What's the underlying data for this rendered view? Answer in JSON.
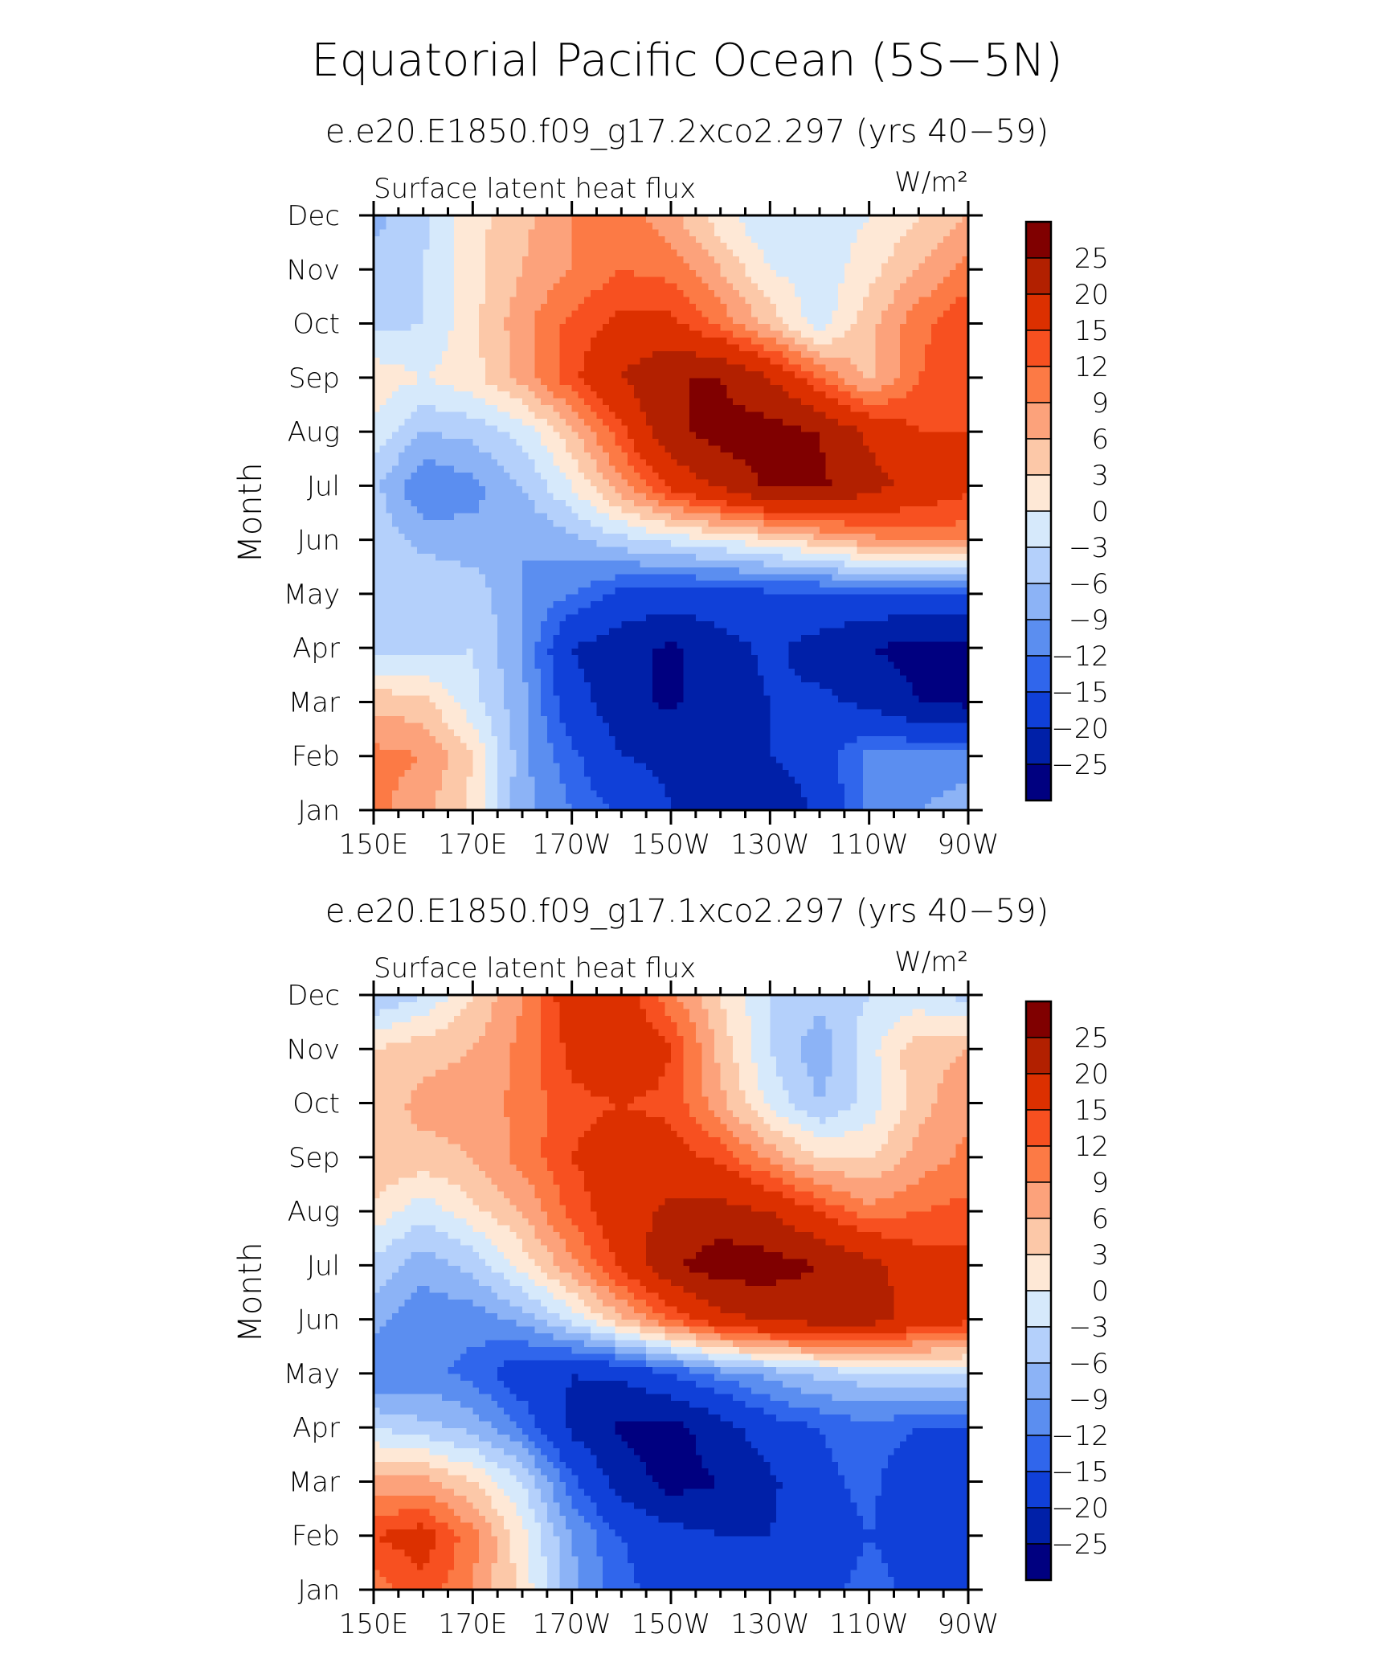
{
  "figure_title": "Equatorial Pacific Ocean (5S−5N)",
  "colorbar": {
    "levels": [
      "25",
      "20",
      "15",
      "12",
      "9",
      "6",
      "3",
      "0",
      "−3",
      "−6",
      "−9",
      "−12",
      "−15",
      "−20",
      "−25"
    ],
    "colors": [
      "#800000",
      "#b22000",
      "#dc3000",
      "#f75020",
      "#fc7a45",
      "#fca27b",
      "#fcc8a8",
      "#fee8d6",
      "#d6e9fb",
      "#b4d0fb",
      "#8cb3f6",
      "#5b8ef0",
      "#3066ec",
      "#1040d8",
      "#0020a8",
      "#000080"
    ]
  },
  "chart_data": [
    {
      "type": "heatmap",
      "panel_title": "e.e20.E1850.f09_g17.2xco2.297 (yrs 40−59)",
      "variable_label": "Surface latent heat flux",
      "units": "W/m²",
      "ylabel": "Month",
      "x_tick_labels": [
        "150E",
        "170E",
        "170W",
        "150W",
        "130W",
        "110W",
        "90W"
      ],
      "y_tick_labels": [
        "Jan",
        "Feb",
        "Mar",
        "Apr",
        "May",
        "Jun",
        "Jul",
        "Aug",
        "Sep",
        "Oct",
        "Nov",
        "Dec"
      ],
      "x": [
        150,
        160,
        170,
        180,
        190,
        200,
        210,
        220,
        230,
        240,
        250,
        260,
        270
      ],
      "y": [
        "Jan",
        "Feb",
        "Mar",
        "Apr",
        "May",
        "Jun",
        "Jul",
        "Aug",
        "Sep",
        "Oct",
        "Nov",
        "Dec"
      ],
      "z": [
        [
          10,
          7,
          2,
          -8,
          -12,
          -16,
          -20,
          -22,
          -25,
          -19,
          -11,
          -9,
          -7
        ],
        [
          10,
          9,
          3,
          -8,
          -14,
          -20,
          -21,
          -21,
          -20,
          -17,
          -11,
          -11,
          -11
        ],
        [
          5,
          4,
          -2,
          -8,
          -18,
          -23,
          -26,
          -22,
          -20,
          -19,
          -21,
          -25,
          -26
        ],
        [
          -4,
          -4,
          -3,
          -9,
          -20,
          -23,
          -26,
          -22,
          -19,
          -22,
          -25,
          -27,
          -27
        ],
        [
          -5,
          -3,
          -4,
          -9,
          -12,
          -16,
          -17,
          -17,
          -16,
          -16,
          -15,
          -16,
          -15
        ],
        [
          -4,
          -7,
          -8,
          -9,
          -7,
          -4,
          -2,
          0,
          2,
          5,
          8,
          10,
          10
        ],
        [
          -5,
          -12,
          -10,
          -6,
          0,
          8,
          16,
          21,
          26,
          26,
          22,
          18,
          16
        ],
        [
          -1,
          -6,
          -5,
          -2,
          5,
          14,
          24,
          27,
          27,
          25,
          19,
          15,
          15
        ],
        [
          2,
          0,
          2,
          7,
          14,
          20,
          25,
          25,
          20,
          12,
          5,
          12,
          14
        ],
        [
          -4,
          -3,
          2,
          8,
          13,
          16,
          16,
          11,
          5,
          -2,
          5,
          11,
          15
        ],
        [
          -5,
          -3,
          2,
          6,
          9,
          12,
          11,
          6,
          0,
          -2,
          2,
          6,
          10
        ],
        [
          -7,
          -4,
          2,
          5,
          9,
          11,
          7,
          1,
          -3,
          -3,
          0,
          3,
          6
        ]
      ]
    },
    {
      "type": "heatmap",
      "panel_title": "e.e20.E1850.f09_g17.1xco2.297 (yrs 40−59)",
      "variable_label": "Surface latent heat flux",
      "units": "W/m²",
      "ylabel": "Month",
      "x_tick_labels": [
        "150E",
        "170E",
        "170W",
        "150W",
        "130W",
        "110W",
        "90W"
      ],
      "y_tick_labels": [
        "Jan",
        "Feb",
        "Mar",
        "Apr",
        "May",
        "Jun",
        "Jul",
        "Aug",
        "Sep",
        "Oct",
        "Nov",
        "Dec"
      ],
      "x": [
        150,
        160,
        170,
        180,
        190,
        200,
        210,
        220,
        230,
        240,
        250,
        260,
        270
      ],
      "y": [
        "Jan",
        "Feb",
        "Mar",
        "Apr",
        "May",
        "Jun",
        "Jul",
        "Aug",
        "Sep",
        "Oct",
        "Nov",
        "Dec"
      ],
      "z": [
        [
          10,
          14,
          9,
          2,
          -8,
          -14,
          -17,
          -19,
          -17,
          -16,
          -14,
          -16,
          -16
        ],
        [
          15,
          17,
          10,
          1,
          -9,
          -15,
          -18,
          -20,
          -20,
          -17,
          -15,
          -16,
          -16
        ],
        [
          7,
          7,
          3,
          -3,
          -14,
          -22,
          -27,
          -25,
          -21,
          -16,
          -14,
          -19,
          -16
        ],
        [
          -3,
          -5,
          -7,
          -12,
          -21,
          -26,
          -27,
          -22,
          -17,
          -15,
          -13,
          -15,
          -15
        ],
        [
          -12,
          -11,
          -13,
          -18,
          -20,
          -19,
          -15,
          -11,
          -8,
          -5,
          -4,
          -3,
          -3
        ],
        [
          -8,
          -11,
          -11,
          -8,
          -2,
          5,
          12,
          18,
          21,
          22,
          22,
          18,
          16
        ],
        [
          -4,
          -8,
          -5,
          1,
          8,
          16,
          24,
          28,
          27,
          25,
          22,
          17,
          16
        ],
        [
          2,
          -2,
          2,
          6,
          13,
          18,
          21,
          22,
          20,
          15,
          10,
          12,
          13
        ],
        [
          6,
          5,
          6,
          10,
          15,
          17,
          17,
          14,
          8,
          3,
          3,
          7,
          10
        ],
        [
          4,
          7,
          7,
          10,
          14,
          15,
          14,
          7,
          -1,
          -6,
          -2,
          5,
          8
        ],
        [
          3,
          5,
          6,
          10,
          16,
          20,
          15,
          5,
          -3,
          -8,
          -1,
          5,
          6
        ],
        [
          -6,
          -3,
          3,
          9,
          18,
          17,
          10,
          3,
          -3,
          -5,
          -3,
          -2,
          -4
        ]
      ]
    }
  ]
}
